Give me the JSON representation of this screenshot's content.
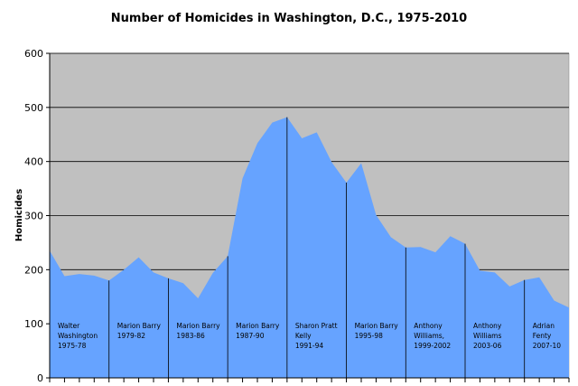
{
  "chart_data": {
    "type": "area",
    "title": "Number of Homicides in Washington, D.C., 1975-2010",
    "xlabel": "",
    "ylabel": "Homicides",
    "ylim": [
      0,
      600
    ],
    "yticks": [
      0,
      100,
      200,
      300,
      400,
      500,
      600
    ],
    "grid": true,
    "legend": "none",
    "x": [
      1975,
      1976,
      1977,
      1978,
      1979,
      1980,
      1981,
      1982,
      1983,
      1984,
      1985,
      1986,
      1987,
      1988,
      1989,
      1990,
      1991,
      1992,
      1993,
      1994,
      1995,
      1996,
      1997,
      1998,
      1999,
      2000,
      2001,
      2002,
      2003,
      2004,
      2005,
      2006,
      2007,
      2008,
      2009,
      2010
    ],
    "series": [
      {
        "values": [
          235,
          188,
          192,
          189,
          180,
          200,
          223,
          195,
          184,
          175,
          147,
          194,
          225,
          369,
          434,
          472,
          482,
          443,
          454,
          399,
          361,
          397,
          301,
          260,
          241,
          242,
          232,
          262,
          248,
          198,
          195,
          169,
          181,
          186,
          143,
          130
        ]
      }
    ],
    "terms": [
      {
        "lines": [
          "Walter",
          "Washington",
          "1975-78"
        ],
        "start": 1975,
        "end": 1978
      },
      {
        "lines": [
          "Marion Barry",
          "1979-82"
        ],
        "start": 1979,
        "end": 1982
      },
      {
        "lines": [
          "Marion Barry",
          "1983-86"
        ],
        "start": 1983,
        "end": 1986
      },
      {
        "lines": [
          "Marion Barry",
          "1987-90"
        ],
        "start": 1987,
        "end": 1990
      },
      {
        "lines": [
          "Sharon Pratt",
          "Kelly",
          "1991-94"
        ],
        "start": 1991,
        "end": 1994
      },
      {
        "lines": [
          "Marion Barry",
          "1995-98"
        ],
        "start": 1995,
        "end": 1998
      },
      {
        "lines": [
          "Anthony",
          "Williams,",
          "1999-2002"
        ],
        "start": 1999,
        "end": 2002
      },
      {
        "lines": [
          "Anthony",
          "Williams",
          "2003-06"
        ],
        "start": 2003,
        "end": 2006
      },
      {
        "lines": [
          "Adrian",
          "Fenty",
          "2007-10"
        ],
        "start": 2007,
        "end": 2010
      }
    ],
    "colors": {
      "plot_bg": "#c0c0c0",
      "area": "#66a3ff",
      "grid": "#000000",
      "divider": "#000000"
    }
  }
}
